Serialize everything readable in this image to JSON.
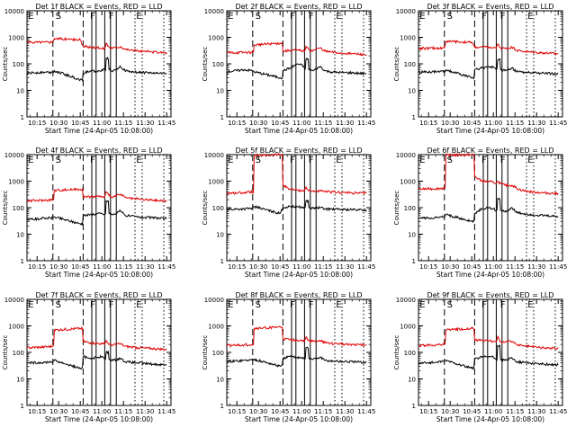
{
  "colors": {
    "events": "#000000",
    "lld": "#e00000",
    "frame": "#000000"
  },
  "common": {
    "xlabel": "Start Time (24-Apr-05 10:08:00)",
    "ylabel": "Counts/sec",
    "x_tick_labels": [
      "10:15",
      "10:30",
      "10:45",
      "11:00",
      "11:15",
      "11:30",
      "11:45"
    ],
    "x_tick_minutes": [
      15,
      30,
      45,
      60,
      75,
      90,
      105
    ],
    "xlim_minutes_after_10_00": [
      8,
      108
    ],
    "y_tick_labels": [
      "1",
      "10",
      "100",
      "1000",
      "10000"
    ],
    "ylim": [
      1,
      10000
    ],
    "y_scale": "log"
  },
  "chart_data": [
    {
      "type": "line",
      "title": "Det 1f BLACK = Events, RED = LLD",
      "series": [
        {
          "name": "Events",
          "x": [
            8,
            20,
            26,
            27,
            45,
            47,
            52,
            57,
            60,
            62,
            63,
            65,
            68,
            73,
            76,
            80,
            85,
            90,
            95,
            100,
            105
          ],
          "values": [
            45,
            48,
            48,
            55,
            25,
            45,
            55,
            50,
            60,
            60,
            160,
            60,
            55,
            80,
            55,
            50,
            48,
            47,
            45,
            44,
            43
          ]
        },
        {
          "name": "LLD",
          "x": [
            8,
            20,
            26,
            27,
            45,
            47,
            52,
            57,
            60,
            62,
            63,
            65,
            68,
            73,
            76,
            80,
            85,
            90,
            95,
            100,
            105
          ],
          "values": [
            650,
            660,
            680,
            900,
            800,
            450,
            420,
            400,
            380,
            380,
            600,
            420,
            400,
            450,
            360,
            330,
            310,
            290,
            280,
            270,
            260
          ]
        }
      ],
      "markers": [
        {
          "label": "E",
          "minute": 10
        },
        {
          "label": "S",
          "minute": 29
        },
        {
          "label": "F",
          "minute": 53
        },
        {
          "label": "F",
          "minute": 66
        },
        {
          "label": "E",
          "minute": 85
        }
      ]
    },
    {
      "type": "line",
      "title": "Det 2f BLACK = Events, RED = LLD",
      "series": [
        {
          "name": "Events",
          "x": [
            8,
            20,
            26,
            27,
            45,
            47,
            52,
            57,
            60,
            62,
            63,
            65,
            68,
            73,
            76,
            80,
            85,
            90,
            95,
            100,
            105
          ],
          "values": [
            50,
            60,
            55,
            50,
            30,
            55,
            70,
            100,
            90,
            70,
            150,
            60,
            55,
            80,
            55,
            50,
            48,
            47,
            46,
            44,
            43
          ]
        },
        {
          "name": "LLD",
          "x": [
            8,
            20,
            26,
            27,
            45,
            47,
            52,
            57,
            60,
            62,
            63,
            65,
            68,
            73,
            76,
            80,
            85,
            90,
            95,
            100,
            105
          ],
          "values": [
            260,
            270,
            270,
            520,
            600,
            300,
            320,
            330,
            310,
            300,
            450,
            340,
            320,
            400,
            300,
            280,
            260,
            250,
            240,
            230,
            220
          ]
        }
      ],
      "markers": [
        {
          "label": "E",
          "minute": 10
        },
        {
          "label": "S",
          "minute": 29
        },
        {
          "label": "F",
          "minute": 53
        },
        {
          "label": "F",
          "minute": 66
        },
        {
          "label": "E",
          "minute": 85
        }
      ]
    },
    {
      "type": "line",
      "title": "Det 3f BLACK = Events, RED = LLD",
      "series": [
        {
          "name": "Events",
          "x": [
            8,
            20,
            26,
            27,
            45,
            47,
            52,
            57,
            60,
            62,
            63,
            65,
            68,
            73,
            76,
            80,
            85,
            90,
            95,
            100,
            105
          ],
          "values": [
            48,
            50,
            52,
            60,
            30,
            60,
            70,
            80,
            75,
            60,
            140,
            60,
            55,
            70,
            52,
            48,
            46,
            45,
            44,
            43,
            42
          ]
        },
        {
          "name": "LLD",
          "x": [
            8,
            20,
            26,
            27,
            45,
            47,
            52,
            57,
            60,
            62,
            63,
            65,
            68,
            73,
            76,
            80,
            85,
            90,
            95,
            100,
            105
          ],
          "values": [
            380,
            390,
            400,
            700,
            650,
            420,
            430,
            420,
            400,
            380,
            550,
            400,
            380,
            420,
            330,
            300,
            280,
            270,
            260,
            250,
            240
          ]
        }
      ],
      "markers": [
        {
          "label": "E",
          "minute": 10
        },
        {
          "label": "S",
          "minute": 29
        },
        {
          "label": "F",
          "minute": 53
        },
        {
          "label": "F",
          "minute": 66
        },
        {
          "label": "E",
          "minute": 85
        }
      ]
    },
    {
      "type": "line",
      "title": "Det 4f BLACK = Events, RED = LLD",
      "series": [
        {
          "name": "Events",
          "x": [
            8,
            20,
            26,
            27,
            45,
            47,
            52,
            57,
            60,
            62,
            63,
            65,
            68,
            73,
            76,
            80,
            85,
            90,
            95,
            100,
            105
          ],
          "values": [
            35,
            40,
            42,
            45,
            25,
            50,
            55,
            60,
            60,
            55,
            180,
            60,
            55,
            75,
            52,
            48,
            45,
            43,
            42,
            40,
            38
          ]
        },
        {
          "name": "LLD",
          "x": [
            8,
            20,
            26,
            27,
            45,
            47,
            52,
            57,
            60,
            62,
            63,
            65,
            68,
            73,
            76,
            80,
            85,
            90,
            95,
            100,
            105
          ],
          "values": [
            180,
            190,
            200,
            450,
            500,
            250,
            260,
            270,
            260,
            250,
            400,
            280,
            260,
            320,
            240,
            220,
            210,
            200,
            190,
            185,
            180
          ]
        }
      ],
      "markers": [
        {
          "label": "E",
          "minute": 10
        },
        {
          "label": "S",
          "minute": 29
        },
        {
          "label": "F",
          "minute": 53
        },
        {
          "label": "F",
          "minute": 66
        },
        {
          "label": "E",
          "minute": 85
        }
      ]
    },
    {
      "type": "line",
      "title": "Det 5f BLACK = Events, RED = LLD",
      "series": [
        {
          "name": "Events",
          "x": [
            8,
            20,
            26,
            27,
            45,
            47,
            52,
            57,
            60,
            62,
            63,
            65,
            68,
            73,
            76,
            80,
            85,
            90,
            95,
            100,
            105
          ],
          "values": [
            85,
            90,
            95,
            110,
            60,
            100,
            110,
            110,
            105,
            100,
            180,
            100,
            95,
            100,
            90,
            88,
            86,
            85,
            84,
            82,
            80
          ]
        },
        {
          "name": "LLD",
          "x": [
            8,
            20,
            26,
            27,
            45,
            47,
            52,
            57,
            60,
            62,
            63,
            65,
            68,
            73,
            76,
            80,
            85,
            90,
            95,
            100,
            105
          ],
          "values": [
            350,
            370,
            400,
            9000,
            10000,
            700,
            500,
            460,
            440,
            430,
            600,
            430,
            420,
            420,
            400,
            390,
            380,
            370,
            360,
            355,
            350
          ]
        }
      ],
      "markers": [
        {
          "label": "E",
          "minute": 10
        },
        {
          "label": "S",
          "minute": 29
        },
        {
          "label": "F",
          "minute": 53
        },
        {
          "label": "F",
          "minute": 66
        },
        {
          "label": "E",
          "minute": 85
        }
      ]
    },
    {
      "type": "line",
      "title": "Det 6f BLACK = Events, RED = LLD",
      "series": [
        {
          "name": "Events",
          "x": [
            8,
            20,
            26,
            27,
            45,
            47,
            52,
            57,
            60,
            62,
            63,
            65,
            68,
            73,
            76,
            80,
            85,
            90,
            95,
            100,
            105
          ],
          "values": [
            40,
            42,
            45,
            55,
            30,
            60,
            90,
            100,
            90,
            80,
            220,
            80,
            70,
            100,
            65,
            60,
            55,
            52,
            50,
            48,
            46
          ]
        },
        {
          "name": "LLD",
          "x": [
            8,
            20,
            26,
            27,
            45,
            47,
            52,
            57,
            60,
            62,
            63,
            65,
            68,
            73,
            76,
            80,
            85,
            90,
            95,
            100,
            105
          ],
          "values": [
            500,
            520,
            550,
            9500,
            10000,
            1500,
            1000,
            950,
            900,
            850,
            1000,
            800,
            700,
            700,
            550,
            450,
            400,
            380,
            360,
            350,
            340
          ]
        }
      ],
      "markers": [
        {
          "label": "E",
          "minute": 10
        },
        {
          "label": "S",
          "minute": 29
        },
        {
          "label": "F",
          "minute": 53
        },
        {
          "label": "F",
          "minute": 66
        },
        {
          "label": "E",
          "minute": 85
        }
      ]
    },
    {
      "type": "line",
      "title": "Det 7f BLACK = Events, RED = LLD",
      "series": [
        {
          "name": "Events",
          "x": [
            8,
            20,
            26,
            27,
            45,
            47,
            52,
            57,
            60,
            62,
            63,
            65,
            68,
            73,
            76,
            80,
            85,
            90,
            95,
            100,
            105
          ],
          "values": [
            40,
            42,
            45,
            50,
            25,
            70,
            60,
            65,
            70,
            55,
            100,
            55,
            50,
            60,
            45,
            42,
            40,
            38,
            36,
            35,
            34
          ]
        },
        {
          "name": "LLD",
          "x": [
            8,
            20,
            26,
            27,
            45,
            47,
            52,
            57,
            60,
            62,
            63,
            65,
            68,
            73,
            76,
            80,
            85,
            90,
            95,
            100,
            105
          ],
          "values": [
            150,
            160,
            170,
            700,
            800,
            260,
            230,
            220,
            210,
            200,
            280,
            200,
            190,
            210,
            170,
            160,
            150,
            145,
            140,
            135,
            130
          ]
        }
      ],
      "markers": [
        {
          "label": "E",
          "minute": 10
        },
        {
          "label": "S",
          "minute": 29
        },
        {
          "label": "F",
          "minute": 53
        },
        {
          "label": "F",
          "minute": 66
        },
        {
          "label": "E",
          "minute": 85
        }
      ]
    },
    {
      "type": "line",
      "title": "Det 8f BLACK = Events, RED = LLD",
      "series": [
        {
          "name": "Events",
          "x": [
            8,
            20,
            26,
            27,
            45,
            47,
            52,
            57,
            60,
            62,
            63,
            65,
            68,
            73,
            76,
            80,
            85,
            90,
            95,
            100,
            105
          ],
          "values": [
            45,
            50,
            52,
            55,
            30,
            60,
            70,
            65,
            65,
            60,
            150,
            60,
            55,
            65,
            50,
            48,
            46,
            45,
            44,
            43,
            42
          ]
        },
        {
          "name": "LLD",
          "x": [
            8,
            20,
            26,
            27,
            45,
            47,
            52,
            57,
            60,
            62,
            63,
            65,
            68,
            73,
            76,
            80,
            85,
            90,
            95,
            100,
            105
          ],
          "values": [
            180,
            190,
            200,
            800,
            900,
            320,
            300,
            290,
            280,
            270,
            380,
            270,
            260,
            280,
            230,
            220,
            210,
            205,
            200,
            195,
            190
          ]
        }
      ],
      "markers": [
        {
          "label": "E",
          "minute": 10
        },
        {
          "label": "S",
          "minute": 29
        },
        {
          "label": "F",
          "minute": 53
        },
        {
          "label": "F",
          "minute": 66
        },
        {
          "label": "E",
          "minute": 85
        }
      ]
    },
    {
      "type": "line",
      "title": "Det 9f BLACK = Events, RED = LLD",
      "series": [
        {
          "name": "Events",
          "x": [
            8,
            20,
            26,
            27,
            45,
            47,
            52,
            57,
            60,
            62,
            63,
            65,
            68,
            73,
            76,
            80,
            85,
            90,
            95,
            100,
            105
          ],
          "values": [
            40,
            42,
            45,
            50,
            25,
            60,
            65,
            70,
            65,
            55,
            180,
            55,
            50,
            60,
            45,
            42,
            40,
            38,
            36,
            35,
            34
          ]
        },
        {
          "name": "LLD",
          "x": [
            8,
            20,
            26,
            27,
            45,
            47,
            52,
            57,
            60,
            62,
            63,
            65,
            68,
            73,
            76,
            80,
            85,
            90,
            95,
            100,
            105
          ],
          "values": [
            180,
            190,
            200,
            700,
            800,
            290,
            280,
            270,
            260,
            250,
            400,
            250,
            240,
            260,
            200,
            180,
            170,
            160,
            150,
            145,
            140
          ]
        }
      ],
      "markers": [
        {
          "label": "E",
          "minute": 10
        },
        {
          "label": "S",
          "minute": 29
        },
        {
          "label": "F",
          "minute": 53
        },
        {
          "label": "F",
          "minute": 66
        },
        {
          "label": "E",
          "minute": 85
        }
      ]
    }
  ]
}
